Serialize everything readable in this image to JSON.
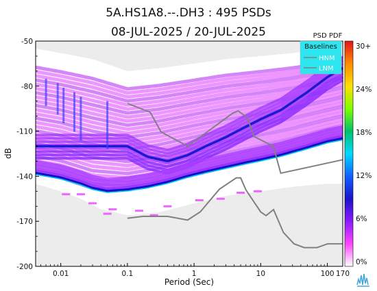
{
  "chart_data": {
    "type": "scatter",
    "title_line1": "5A.HS1A8.--.DH3 : 495 PSDs",
    "title_line2": "08-JUL-2025 / 20-JUL-2025",
    "xlabel": "Period (Sec)",
    "ylabel": "dB",
    "x_scale": "log",
    "xlim": [
      0.0042,
      170
    ],
    "ylim": [
      -200,
      -50
    ],
    "x_ticks": [
      {
        "value": 0.01,
        "label": "0.01"
      },
      {
        "value": 0.1,
        "label": "0.1"
      },
      {
        "value": 1,
        "label": "1"
      },
      {
        "value": 10,
        "label": "10"
      },
      {
        "value": 100,
        "label": "100"
      },
      {
        "value": 170,
        "label": "170"
      }
    ],
    "y_ticks": [
      -50,
      -80,
      -110,
      -140,
      -170,
      -200
    ],
    "legend": {
      "title": "Baselines",
      "placement": "top-right",
      "entries": [
        {
          "name": "HNM"
        },
        {
          "name": "LNM"
        }
      ]
    },
    "colorbar": {
      "title": "PSD PDF",
      "labels": [
        "30+",
        "24%",
        "18%",
        "12%",
        "6%",
        "0%"
      ],
      "colors": [
        "#e4141b",
        "#ff8c00",
        "#ffe000",
        "#7fff00",
        "#00c06a",
        "#00d8ff",
        "#1060ff",
        "#1a14c8",
        "#8a1aff",
        "#ff44ff",
        "#ffffff"
      ]
    },
    "series": [
      {
        "name": "HNM",
        "color": "#808080",
        "x": [
          0.1,
          0.22,
          0.32,
          0.8,
          3.8,
          4.6,
          6.3,
          7.9,
          15.4,
          20,
          170
        ],
        "y": [
          -91.5,
          -97.4,
          -110.5,
          -120,
          -98,
          -96.5,
          -101,
          -113.5,
          -120,
          -138,
          -129
        ]
      },
      {
        "name": "LNM",
        "color": "#808080",
        "x": [
          0.1,
          0.17,
          0.4,
          0.8,
          1.24,
          2.4,
          4.3,
          5,
          6,
          10,
          12,
          15.6,
          21.9,
          31.6,
          45,
          70,
          101,
          154,
          170
        ],
        "y": [
          -168,
          -166.7,
          -166.7,
          -169.2,
          -163.7,
          -148.6,
          -141.1,
          -141.1,
          -149.1,
          -163.8,
          -166.2,
          -162.2,
          -177.5,
          -185,
          -187.5,
          -187.5,
          -185,
          -185,
          -185
        ]
      }
    ],
    "pdf_bands": {
      "mode_curve": {
        "x": [
          0.0042,
          0.01,
          0.02,
          0.03,
          0.05,
          0.1,
          0.2,
          0.4,
          0.8,
          1.5,
          3,
          6,
          10,
          20,
          50,
          100,
          170
        ],
        "y": [
          -138,
          -141,
          -145,
          -148,
          -150,
          -149,
          -147,
          -144,
          -140,
          -137,
          -134,
          -131,
          -129,
          -126,
          -121,
          -117,
          -115
        ]
      },
      "hnm_like_curve": {
        "x": [
          0.1,
          0.2,
          0.4,
          0.8,
          1.5,
          3,
          6,
          10,
          20,
          50,
          100,
          170
        ],
        "y": [
          -120,
          -127,
          -130,
          -126,
          -120,
          -114,
          -107,
          -102,
          -96,
          -84,
          -74,
          -68
        ]
      },
      "envelope_top": {
        "x": [
          0.0042,
          0.01,
          0.03,
          0.1,
          0.3,
          1,
          3,
          10,
          30,
          100,
          170
        ],
        "y": [
          -55,
          -58,
          -62,
          -70,
          -68,
          -65,
          -62,
          -60,
          -58,
          -55,
          -52
        ]
      },
      "envelope_bottom": {
        "x": [
          0.0042,
          0.01,
          0.02,
          0.04,
          0.1,
          0.3,
          1,
          3,
          10,
          30,
          100,
          170
        ],
        "y": [
          -145,
          -150,
          -155,
          -162,
          -166,
          -164,
          -158,
          -153,
          -150,
          -147,
          -145,
          -145
        ]
      }
    }
  }
}
